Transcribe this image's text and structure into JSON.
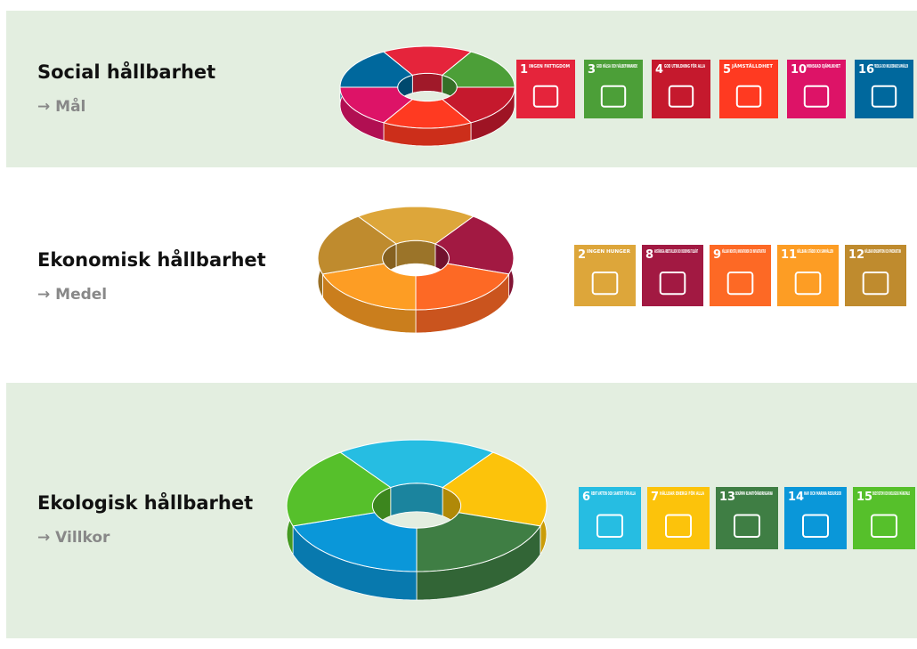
{
  "sections": [
    {
      "title": "Social hållbarhet",
      "subtitle": "→ Mål",
      "goals": [
        {
          "number": "1",
          "label": "INGEN FATTIGDOM",
          "color": "#e5243b"
        },
        {
          "number": "3",
          "label": "GOD HÄLSA OCH VÄLBEFINNANDE",
          "color": "#4c9f38"
        },
        {
          "number": "4",
          "label": "GOD UTBILDNING FÖR ALLA",
          "color": "#c5192d"
        },
        {
          "number": "5",
          "label": "JÄMSTÄLLDHET",
          "color": "#ff3a21"
        },
        {
          "number": "10",
          "label": "MINSKAD OJÄMLIKHET",
          "color": "#dd1367"
        },
        {
          "number": "16",
          "label": "FREDLIGA OCH INKLUDERANDE SAMHÄLLEN",
          "color": "#00689d"
        }
      ]
    },
    {
      "title": "Ekonomisk hållbarhet",
      "subtitle": "→ Medel",
      "goals": [
        {
          "number": "2",
          "label": "INGEN HUNGER",
          "color": "#dda63a"
        },
        {
          "number": "8",
          "label": "ANSTÄNDIGA ARBETSVILLKOR OCH EKONOMISK TILLVÄXT",
          "color": "#a21942"
        },
        {
          "number": "9",
          "label": "HÅLLBAR INDUSTRI, INNOVATIONER OCH INFRASTRUKTUR",
          "color": "#fd6925"
        },
        {
          "number": "11",
          "label": "HÅLLBARA STÄDER OCH SAMHÄLLEN",
          "color": "#fd9d24"
        },
        {
          "number": "12",
          "label": "HÅLLBAR KONSUMTION OCH PRODUKTION",
          "color": "#bf8b2e"
        }
      ]
    },
    {
      "title": "Ekologisk hållbarhet",
      "subtitle": "→ Villkor",
      "goals": [
        {
          "number": "6",
          "label": "RENT VATTEN OCH SANITET FÖR ALLA",
          "color": "#26bde2"
        },
        {
          "number": "7",
          "label": "HÅLLBAR ENERGI FÖR ALLA",
          "color": "#fcc30b"
        },
        {
          "number": "13",
          "label": "BEKÄMPA KLIMATFÖRÄNDRINGARNA",
          "color": "#3f7e44"
        },
        {
          "number": "14",
          "label": "HAV OCH MARINA RESURSER",
          "color": "#0a97d9"
        },
        {
          "number": "15",
          "label": "EKOSYSTEM OCH BIOLOGISK MÅNGFALD",
          "color": "#56c02b"
        }
      ]
    }
  ]
}
